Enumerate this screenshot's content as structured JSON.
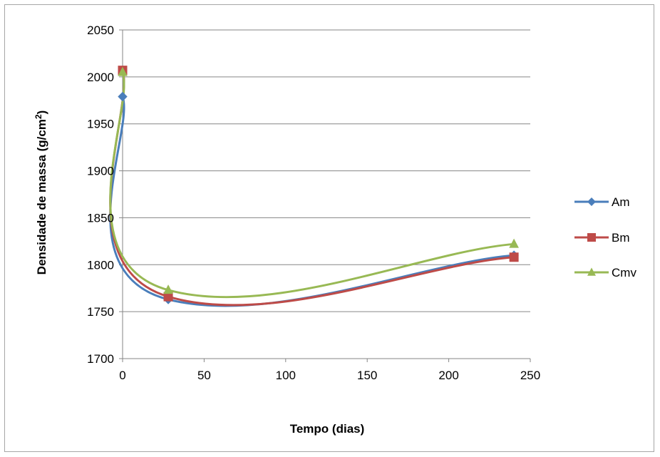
{
  "chart_data": {
    "type": "line",
    "xlabel": "Tempo (dias)",
    "ylabel_main": "Densidade de massa (g/cm",
    "ylabel_sup": "2",
    "ylabel_close": ")",
    "xlim": [
      0,
      250
    ],
    "ylim": [
      1700,
      2050
    ],
    "x_ticks": [
      0,
      50,
      100,
      150,
      200,
      250
    ],
    "y_ticks": [
      1700,
      1750,
      1800,
      1850,
      1900,
      1950,
      2000,
      2050
    ],
    "x_tick_labels": [
      "0",
      "50",
      "100",
      "150",
      "200",
      "250"
    ],
    "y_tick_labels": [
      "1700",
      "1750",
      "1800",
      "1850",
      "1900",
      "1950",
      "2000",
      "2050"
    ],
    "grid": "horizontal",
    "legend_position": "right",
    "x": [
      0,
      28,
      240
    ],
    "series": [
      {
        "name": "Am",
        "values": [
          1979,
          1763,
          1810
        ],
        "color": "#4a7ebb",
        "marker": "diamond"
      },
      {
        "name": "Bm",
        "values": [
          2007,
          1766,
          1808
        ],
        "color": "#be4b48",
        "marker": "square"
      },
      {
        "name": "Cmv",
        "values": [
          2005,
          1773,
          1822
        ],
        "color": "#98b954",
        "marker": "triangle"
      }
    ]
  }
}
